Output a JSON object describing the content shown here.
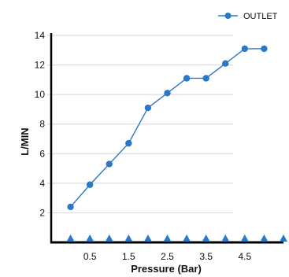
{
  "chart_data": {
    "type": "line",
    "title": "",
    "xlabel": "Pressure (Bar)",
    "ylabel": "L/MIN",
    "xlim": [
      -0.5,
      5.5
    ],
    "ylim": [
      0,
      14
    ],
    "x_ticks": [
      "0.5",
      "1.5",
      "2.5",
      "3.5",
      "4.5"
    ],
    "y_ticks": [
      "2",
      "4",
      "6",
      "8",
      "10",
      "12",
      "14"
    ],
    "grid": "horizontal",
    "legend": "top-right",
    "series": [
      {
        "name": "OUTLET",
        "color": "#2a78c8",
        "x": [
          0,
          0.5,
          1,
          1.5,
          2,
          2.5,
          3,
          3.5,
          4,
          4.5,
          5
        ],
        "y": [
          2.4,
          3.9,
          5.3,
          6.7,
          9.1,
          10.1,
          11.1,
          11.1,
          12.1,
          13.1,
          13.1
        ]
      }
    ]
  }
}
